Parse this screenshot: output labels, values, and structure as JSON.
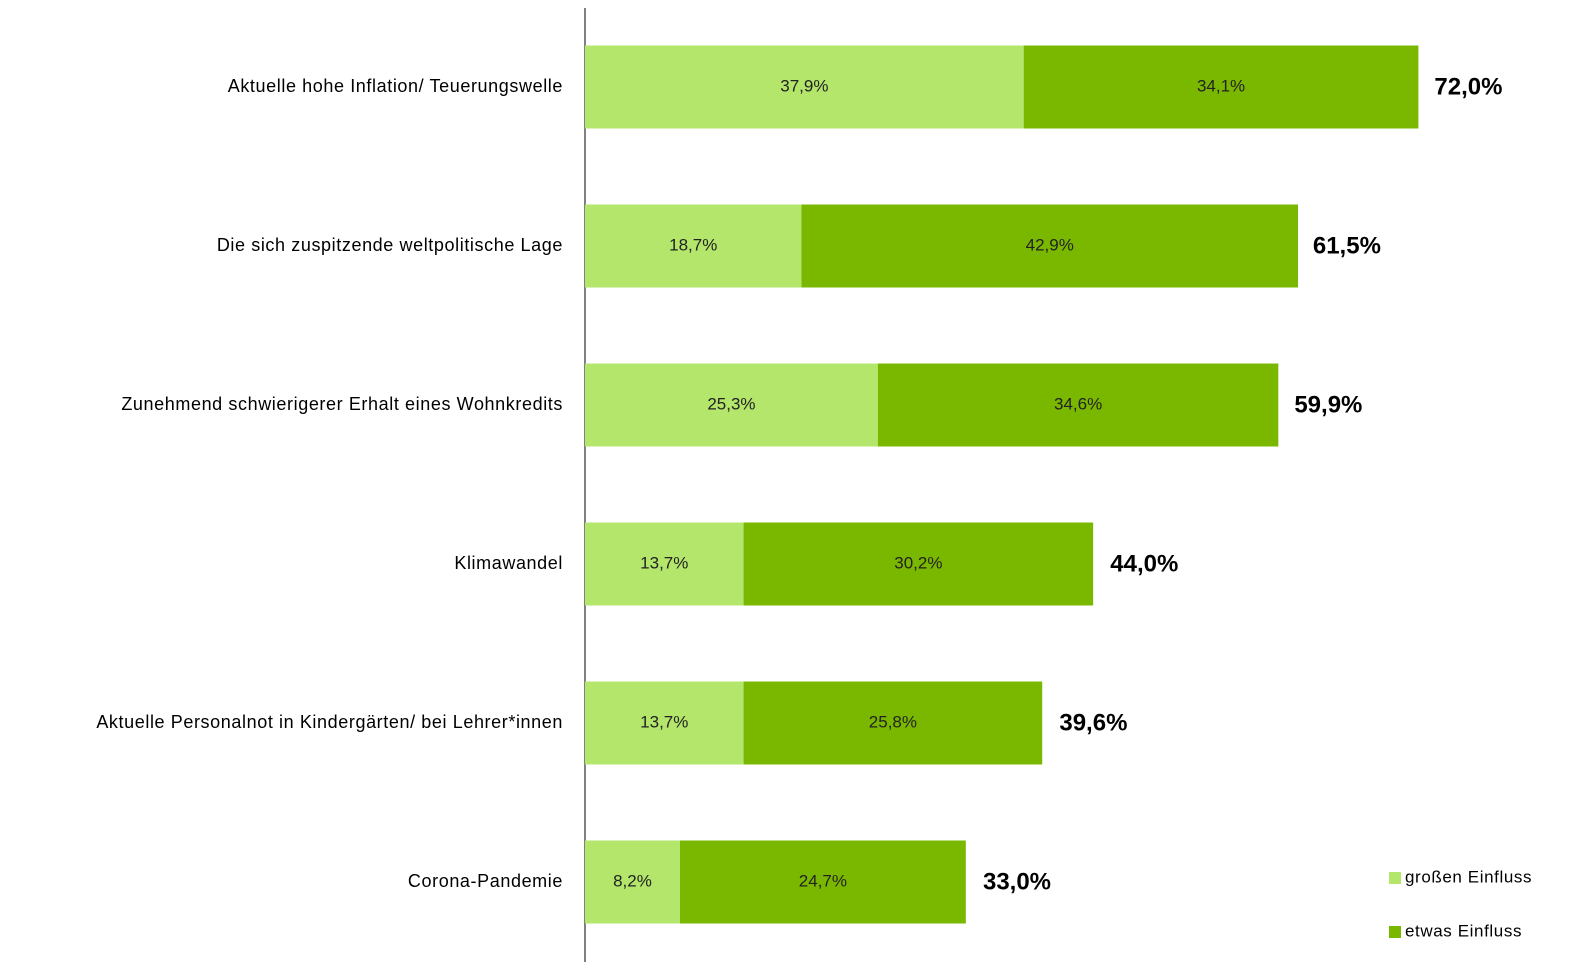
{
  "chart_data": {
    "type": "stacked-barh",
    "categories": [
      "Aktuelle hohe Inflation/ Teuerungswelle",
      "Die sich zuspitzende weltpolitische Lage",
      "Zunehmend schwierigerer Erhalt eines Wohnkredits",
      "Klimawandel",
      "Aktuelle Personalnot in Kindergärten/ bei Lehrer*innen",
      "Corona-Pandemie"
    ],
    "series": [
      {
        "name": "großen Einfluss",
        "color": "#b3e66b",
        "values": [
          37.9,
          18.7,
          25.3,
          13.7,
          13.7,
          8.2
        ],
        "value_labels": [
          "37,9%",
          "18,7%",
          "25,3%",
          "13,7%",
          "13,7%",
          "8,2%"
        ]
      },
      {
        "name": "etwas Einfluss",
        "color": "#7ab800",
        "values": [
          34.1,
          42.9,
          34.6,
          30.2,
          25.8,
          24.7
        ],
        "value_labels": [
          "34,1%",
          "42,9%",
          "34,6%",
          "30,2%",
          "25,8%",
          "24,7%"
        ]
      }
    ],
    "totals": [
      72.0,
      61.5,
      59.9,
      44.0,
      39.6,
      33.0
    ],
    "total_labels": [
      "72,0%",
      "61,5%",
      "59,9%",
      "44,0%",
      "39,6%",
      "33,0%"
    ],
    "xlim": [
      0,
      80
    ],
    "legend": "lower right"
  }
}
